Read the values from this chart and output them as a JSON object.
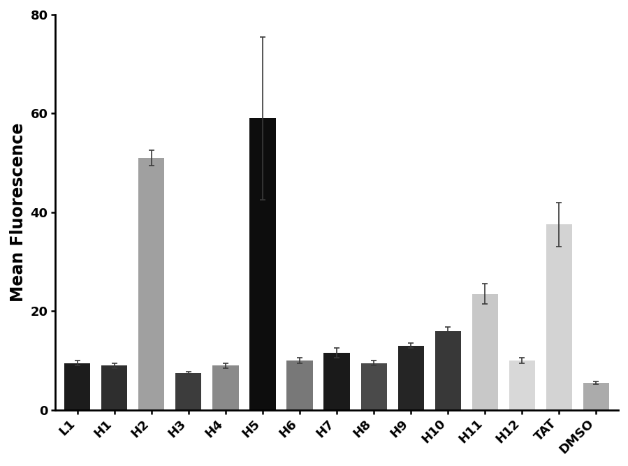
{
  "categories": [
    "L1",
    "H1",
    "H2",
    "H3",
    "H4",
    "H5",
    "H6",
    "H7",
    "H8",
    "H9",
    "H10",
    "H11",
    "H12",
    "TAT",
    "DMSO"
  ],
  "values": [
    9.5,
    9.0,
    51.0,
    7.5,
    9.0,
    59.0,
    10.0,
    11.5,
    9.5,
    13.0,
    16.0,
    23.5,
    10.0,
    37.5,
    5.5
  ],
  "errors": [
    0.5,
    0.5,
    1.5,
    0.3,
    0.5,
    16.5,
    0.5,
    1.0,
    0.5,
    0.5,
    0.8,
    2.0,
    0.5,
    4.5,
    0.3
  ],
  "colors": [
    "#1c1c1c",
    "#2e2e2e",
    "#a0a0a0",
    "#3c3c3c",
    "#8a8a8a",
    "#0d0d0d",
    "#787878",
    "#1a1a1a",
    "#4a4a4a",
    "#252525",
    "#383838",
    "#c8c8c8",
    "#d8d8d8",
    "#d3d3d3",
    "#ababab"
  ],
  "ylabel": "Mean Fluorescence",
  "ylim": [
    0,
    80
  ],
  "yticks": [
    0,
    20,
    40,
    60,
    80
  ],
  "background_color": "#ffffff",
  "bar_edge_color": "none",
  "error_capcolor": "#3a3a3a",
  "ylabel_fontsize": 17,
  "tick_fontsize": 13,
  "bar_width": 0.7,
  "figwidth": 8.99,
  "figheight": 6.67,
  "dpi": 100
}
